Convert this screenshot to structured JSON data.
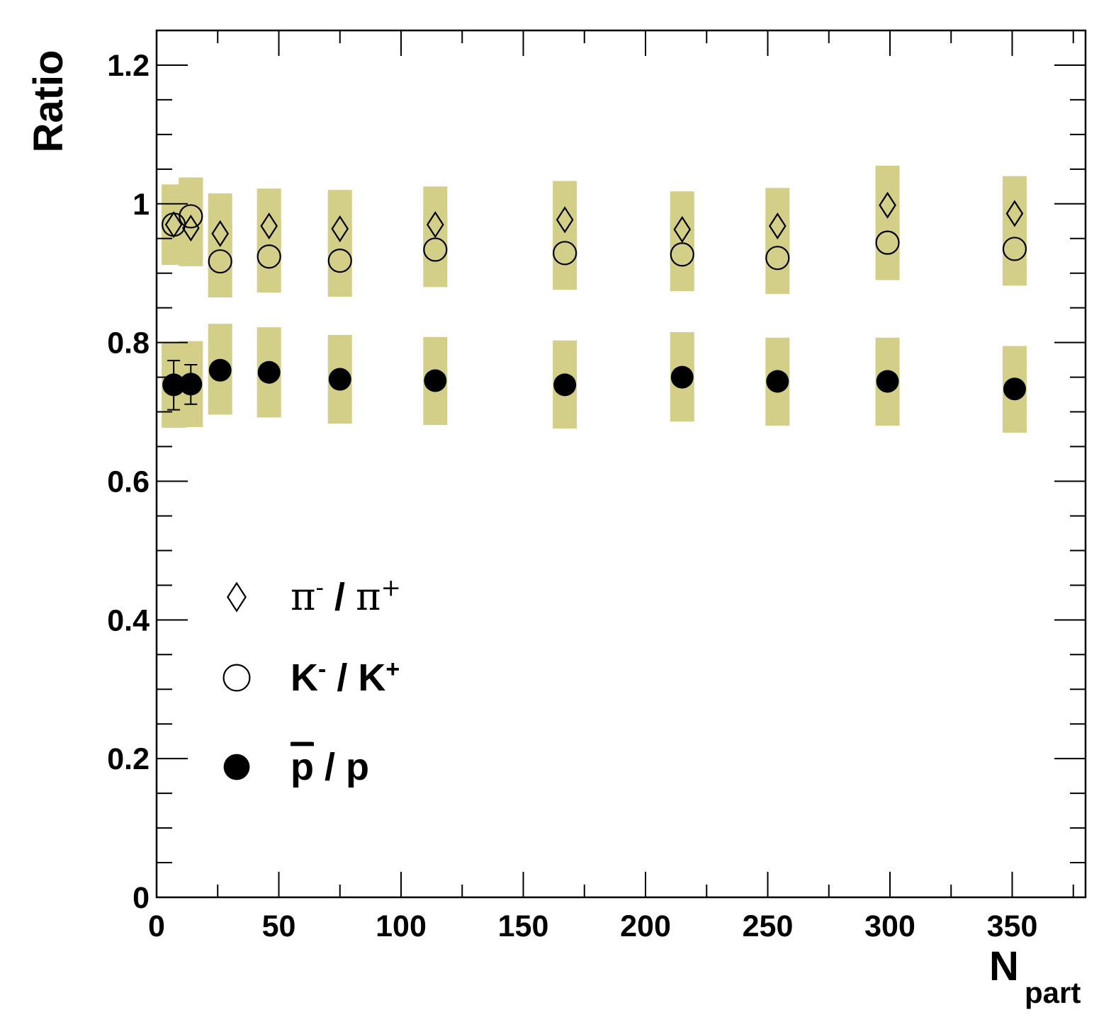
{
  "chart_data": {
    "type": "scatter",
    "title": "",
    "xlabel": {
      "main": "N",
      "sub": "part"
    },
    "ylabel": "Ratio",
    "xlim": [
      0,
      380
    ],
    "ylim": [
      0,
      1.25
    ],
    "x_ticks": [
      "0",
      "50",
      "100",
      "150",
      "200",
      "250",
      "300",
      "350"
    ],
    "y_ticks": [
      "0",
      "0.2",
      "0.4",
      "0.6",
      "0.8",
      "1",
      "1.2"
    ],
    "x_tick_values": [
      0,
      50,
      100,
      150,
      200,
      250,
      300,
      350
    ],
    "y_tick_values": [
      0,
      0.2,
      0.4,
      0.6,
      0.8,
      1.0,
      1.2
    ],
    "band_color": "#d4cf88",
    "grid": false,
    "legend_position": "lower-left",
    "legend": [
      {
        "marker": "open-diamond",
        "base1": "π",
        "sup1": "-",
        "sep": " / ",
        "base2": "π",
        "sup2": "+"
      },
      {
        "marker": "open-circle",
        "base1": "K",
        "sup1": "-",
        "sep": " / ",
        "base2": "K",
        "sup2": "+"
      },
      {
        "marker": "filled-circle",
        "base1": "p",
        "overline1": true,
        "sep": " / ",
        "base2": "p"
      }
    ],
    "series": [
      {
        "name": "π- / π+",
        "marker": "open-diamond",
        "points": [
          {
            "x": 7,
            "y": 0.97,
            "sys_low": 0.912,
            "sys_high": 1.028
          },
          {
            "x": 14,
            "y": 0.965,
            "sys_low": 0.91,
            "sys_high": 1.038
          },
          {
            "x": 26,
            "y": 0.957,
            "sys_low": 0.905,
            "sys_high": 1.015
          },
          {
            "x": 46,
            "y": 0.968,
            "sys_low": 0.915,
            "sys_high": 1.022
          },
          {
            "x": 75,
            "y": 0.964,
            "sys_low": 0.91,
            "sys_high": 1.02
          },
          {
            "x": 114,
            "y": 0.97,
            "sys_low": 0.915,
            "sys_high": 1.025
          },
          {
            "x": 167,
            "y": 0.977,
            "sys_low": 0.92,
            "sys_high": 1.033
          },
          {
            "x": 215,
            "y": 0.963,
            "sys_low": 0.91,
            "sys_high": 1.018
          },
          {
            "x": 254,
            "y": 0.968,
            "sys_low": 0.915,
            "sys_high": 1.023
          },
          {
            "x": 299,
            "y": 0.998,
            "sys_low": 0.94,
            "sys_high": 1.055
          },
          {
            "x": 351,
            "y": 0.986,
            "sys_low": 0.93,
            "sys_high": 1.04
          }
        ]
      },
      {
        "name": "K- / K+",
        "marker": "open-circle",
        "points": [
          {
            "x": 7,
            "y": 0.97,
            "sys_low": 0.918,
            "sys_high": 1.025
          },
          {
            "x": 14,
            "y": 0.982,
            "sys_low": 0.92,
            "sys_high": 1.035
          },
          {
            "x": 26,
            "y": 0.917,
            "sys_low": 0.865,
            "sys_high": 0.97
          },
          {
            "x": 46,
            "y": 0.924,
            "sys_low": 0.872,
            "sys_high": 0.977
          },
          {
            "x": 75,
            "y": 0.918,
            "sys_low": 0.866,
            "sys_high": 0.97
          },
          {
            "x": 114,
            "y": 0.934,
            "sys_low": 0.88,
            "sys_high": 0.987
          },
          {
            "x": 167,
            "y": 0.929,
            "sys_low": 0.876,
            "sys_high": 0.98
          },
          {
            "x": 215,
            "y": 0.927,
            "sys_low": 0.874,
            "sys_high": 0.98
          },
          {
            "x": 254,
            "y": 0.922,
            "sys_low": 0.87,
            "sys_high": 0.975
          },
          {
            "x": 299,
            "y": 0.944,
            "sys_low": 0.89,
            "sys_high": 0.998
          },
          {
            "x": 351,
            "y": 0.935,
            "sys_low": 0.882,
            "sys_high": 0.988
          }
        ]
      },
      {
        "name": "p̄ / p",
        "marker": "filled-circle",
        "points": [
          {
            "x": 7,
            "y": 0.739,
            "sys_low": 0.677,
            "sys_high": 0.8,
            "stat_low": 0.703,
            "stat_high": 0.774
          },
          {
            "x": 14,
            "y": 0.74,
            "sys_low": 0.678,
            "sys_high": 0.802,
            "stat_low": 0.711,
            "stat_high": 0.768
          },
          {
            "x": 26,
            "y": 0.76,
            "sys_low": 0.696,
            "sys_high": 0.827
          },
          {
            "x": 46,
            "y": 0.757,
            "sys_low": 0.692,
            "sys_high": 0.822
          },
          {
            "x": 75,
            "y": 0.747,
            "sys_low": 0.683,
            "sys_high": 0.811
          },
          {
            "x": 114,
            "y": 0.745,
            "sys_low": 0.681,
            "sys_high": 0.808
          },
          {
            "x": 167,
            "y": 0.739,
            "sys_low": 0.676,
            "sys_high": 0.803
          },
          {
            "x": 215,
            "y": 0.75,
            "sys_low": 0.686,
            "sys_high": 0.815
          },
          {
            "x": 254,
            "y": 0.744,
            "sys_low": 0.68,
            "sys_high": 0.807
          },
          {
            "x": 299,
            "y": 0.744,
            "sys_low": 0.68,
            "sys_high": 0.807
          },
          {
            "x": 351,
            "y": 0.733,
            "sys_low": 0.67,
            "sys_high": 0.795
          }
        ]
      }
    ]
  }
}
